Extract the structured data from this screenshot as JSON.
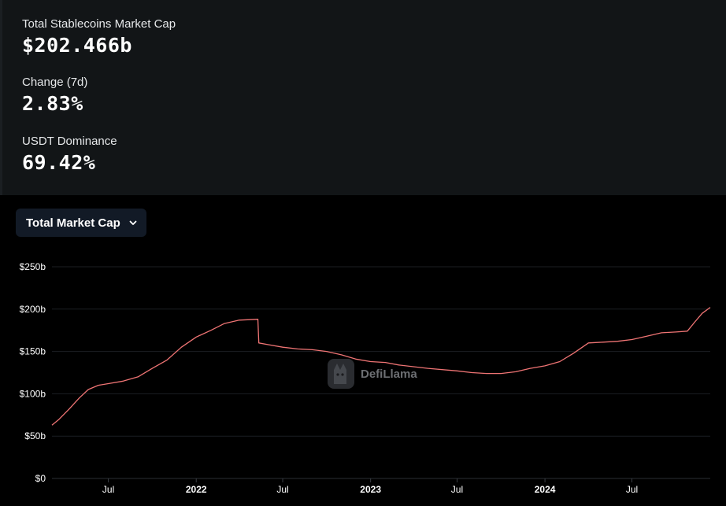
{
  "stats": [
    {
      "label": "Total Stablecoins Market Cap",
      "value": "$202.466b"
    },
    {
      "label": "Change (7d)",
      "value": "2.83%"
    },
    {
      "label": "USDT Dominance",
      "value": "69.42%"
    }
  ],
  "dropdown": {
    "label": "Total Market Cap",
    "icon": "chevron-down-icon"
  },
  "watermark": {
    "text": "DefiLlama",
    "icon": "llama-logo-icon"
  },
  "colors": {
    "line": "#ef7474",
    "panel": "#121517",
    "grid": "#1b1e22",
    "button": "#121a26"
  },
  "chart_data": {
    "type": "line",
    "title": "",
    "xlabel": "",
    "ylabel": "",
    "ylim": [
      0,
      250
    ],
    "y_ticks": [
      {
        "value": 0,
        "label": "$0"
      },
      {
        "value": 50,
        "label": "$50b"
      },
      {
        "value": 100,
        "label": "$100b"
      },
      {
        "value": 150,
        "label": "$150b"
      },
      {
        "value": 200,
        "label": "$200b"
      },
      {
        "value": 250,
        "label": "$250b"
      }
    ],
    "xlim": [
      "2021-03-05",
      "2024-12-12"
    ],
    "x_ticks": [
      {
        "date": "2021-07-01",
        "label": "Jul",
        "bold": false
      },
      {
        "date": "2022-01-01",
        "label": "2022",
        "bold": true
      },
      {
        "date": "2022-07-01",
        "label": "Jul",
        "bold": false
      },
      {
        "date": "2023-01-01",
        "label": "2023",
        "bold": true
      },
      {
        "date": "2023-07-01",
        "label": "Jul",
        "bold": false
      },
      {
        "date": "2024-01-01",
        "label": "2024",
        "bold": true
      },
      {
        "date": "2024-07-01",
        "label": "Jul",
        "bold": false
      }
    ],
    "grid": true,
    "legend": "none",
    "series": [
      {
        "values": [
          [
            "2021-03-05",
            63
          ],
          [
            "2021-03-20",
            70
          ],
          [
            "2021-04-10",
            82
          ],
          [
            "2021-05-01",
            95
          ],
          [
            "2021-05-20",
            105
          ],
          [
            "2021-06-10",
            110
          ],
          [
            "2021-07-01",
            112
          ],
          [
            "2021-08-01",
            115
          ],
          [
            "2021-09-01",
            120
          ],
          [
            "2021-10-01",
            130
          ],
          [
            "2021-11-01",
            140
          ],
          [
            "2021-12-01",
            155
          ],
          [
            "2022-01-01",
            167
          ],
          [
            "2022-02-01",
            175
          ],
          [
            "2022-03-01",
            183
          ],
          [
            "2022-04-01",
            187
          ],
          [
            "2022-05-10",
            188
          ],
          [
            "2022-05-12",
            160
          ],
          [
            "2022-06-01",
            158
          ],
          [
            "2022-07-01",
            155
          ],
          [
            "2022-08-01",
            153
          ],
          [
            "2022-09-01",
            152
          ],
          [
            "2022-10-01",
            150
          ],
          [
            "2022-11-01",
            146
          ],
          [
            "2022-12-01",
            141
          ],
          [
            "2023-01-01",
            138
          ],
          [
            "2023-02-01",
            137
          ],
          [
            "2023-03-01",
            134
          ],
          [
            "2023-05-01",
            130
          ],
          [
            "2023-07-01",
            127
          ],
          [
            "2023-08-01",
            125
          ],
          [
            "2023-09-01",
            124
          ],
          [
            "2023-10-01",
            124
          ],
          [
            "2023-11-01",
            126
          ],
          [
            "2023-12-01",
            130
          ],
          [
            "2024-01-01",
            133
          ],
          [
            "2024-02-01",
            138
          ],
          [
            "2024-03-01",
            148
          ],
          [
            "2024-04-01",
            160
          ],
          [
            "2024-05-01",
            161
          ],
          [
            "2024-06-01",
            162
          ],
          [
            "2024-07-01",
            164
          ],
          [
            "2024-08-01",
            168
          ],
          [
            "2024-09-01",
            172
          ],
          [
            "2024-10-01",
            173
          ],
          [
            "2024-10-25",
            174
          ],
          [
            "2024-11-10",
            185
          ],
          [
            "2024-11-25",
            195
          ],
          [
            "2024-12-12",
            202
          ]
        ]
      }
    ]
  }
}
